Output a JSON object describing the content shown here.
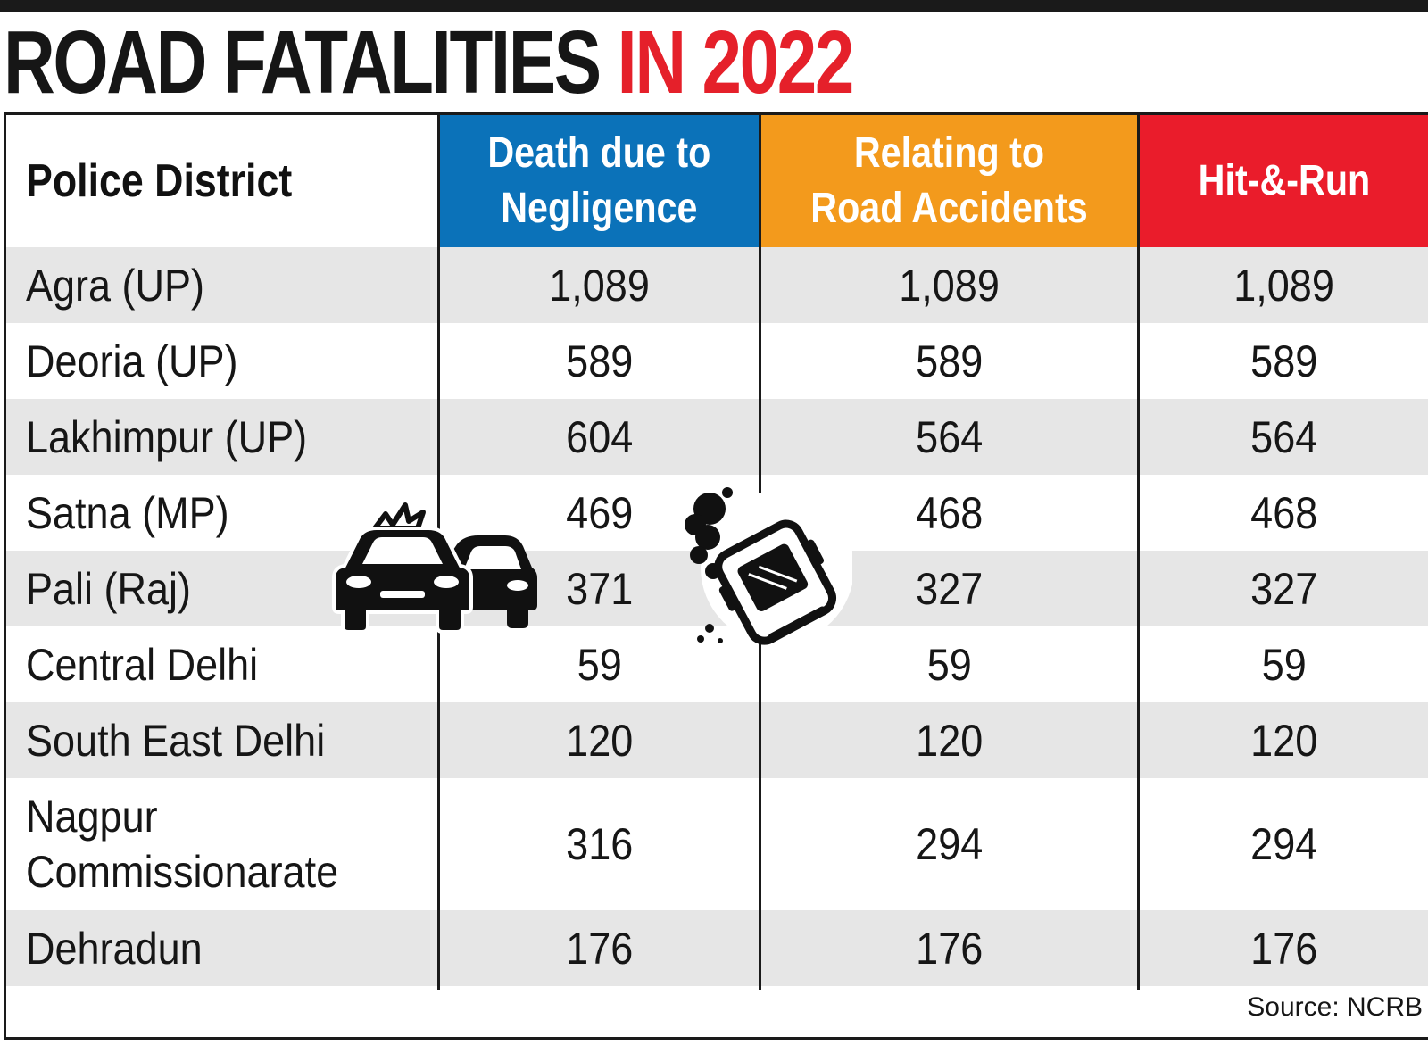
{
  "chart_data": {
    "type": "table",
    "title": "ROAD FATALITIES",
    "title_accent": "IN 2022",
    "columns": [
      {
        "label": "Police District"
      },
      {
        "label": "Death due to\nNegligence",
        "color": "#0b72b9"
      },
      {
        "label": "Relating to\nRoad Accidents",
        "color": "#f39a1c"
      },
      {
        "label": "Hit-&-Run",
        "color": "#ea1c2b"
      }
    ],
    "rows": [
      {
        "district": "Agra (UP)",
        "values": [
          "1,089",
          "1,089",
          "1,089"
        ]
      },
      {
        "district": "Deoria (UP)",
        "values": [
          "589",
          "589",
          "589"
        ]
      },
      {
        "district": "Lakhimpur (UP)",
        "values": [
          "604",
          "564",
          "564"
        ]
      },
      {
        "district": "Satna (MP)",
        "values": [
          "469",
          "468",
          "468"
        ]
      },
      {
        "district": "Pali (Raj)",
        "values": [
          "371",
          "327",
          "327"
        ]
      },
      {
        "district": "Central Delhi",
        "values": [
          "59",
          "59",
          "59"
        ]
      },
      {
        "district": "South East Delhi",
        "values": [
          "120",
          "120",
          "120"
        ]
      },
      {
        "district": "Nagpur\nCommissionarate",
        "values": [
          "316",
          "294",
          "294"
        ]
      },
      {
        "district": "Dehradun",
        "values": [
          "176",
          "176",
          "176"
        ]
      }
    ],
    "source": "Source: NCRB",
    "icons": [
      "car-collision-icon",
      "overturned-car-icon"
    ],
    "accent_color": "#e5202a",
    "row_shade_color": "#e6e6e6"
  }
}
